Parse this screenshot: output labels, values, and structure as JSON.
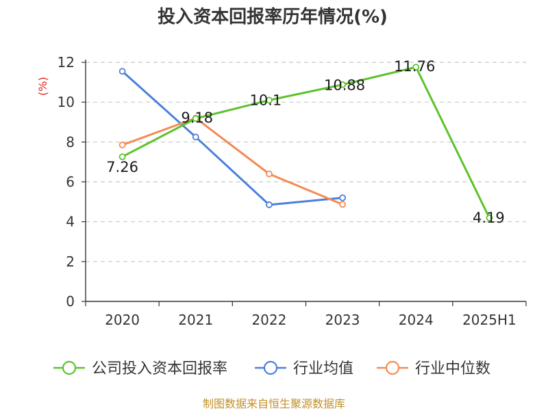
{
  "chart_data": {
    "type": "line",
    "title": "投入资本回报率历年情况(%)",
    "unit_label": "(%)",
    "categories": [
      "2020",
      "2021",
      "2022",
      "2023",
      "2024",
      "2025H1"
    ],
    "ylim": [
      0,
      12
    ],
    "yticks": [
      0,
      2,
      4,
      6,
      8,
      10,
      12
    ],
    "grid": true,
    "legend_position": "bottom",
    "series": [
      {
        "name": "公司投入资本回报率",
        "color": "#5cc22a",
        "values": [
          7.26,
          9.18,
          10.1,
          10.88,
          11.76,
          4.19
        ],
        "labels": [
          "7.26",
          "9.18",
          "10.1",
          "10.88",
          "11.76",
          "4.19"
        ],
        "show_labels": true
      },
      {
        "name": "行业均值",
        "color": "#4a7fdc",
        "values": [
          11.55,
          8.25,
          4.85,
          5.2,
          null,
          null
        ],
        "show_labels": false
      },
      {
        "name": "行业中位数",
        "color": "#f58a54",
        "values": [
          7.85,
          9.2,
          6.4,
          4.87,
          null,
          null
        ],
        "show_labels": false
      }
    ],
    "source": "制图数据来自恒生聚源数据库"
  }
}
